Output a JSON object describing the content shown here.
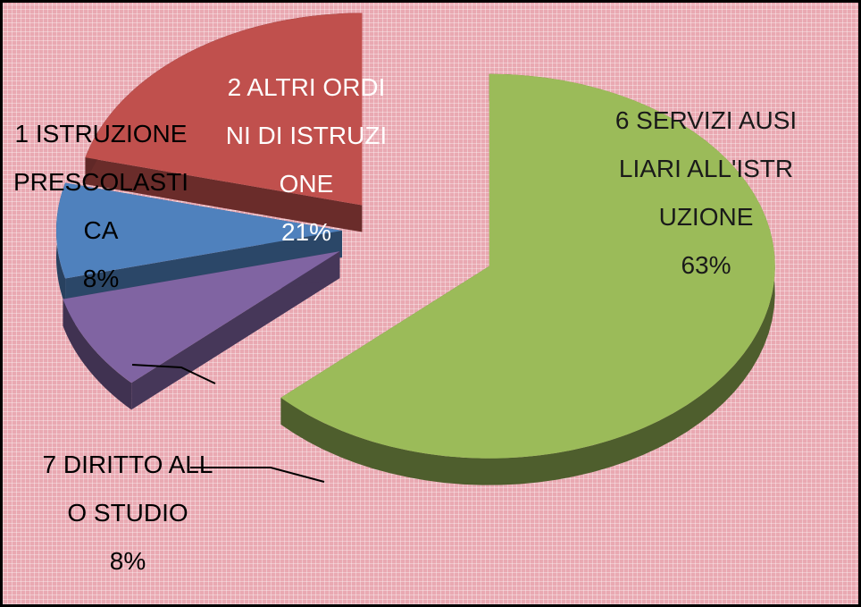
{
  "chart_data": {
    "type": "pie",
    "categories": [
      "1 ISTRUZIONE PRESCOLASTICA",
      "2 ALTRI ORDINI DI ISTRUZIONE",
      "6 SERVIZI AUSILIARI ALL'ISTRUZIONE",
      "7 DIRITTO ALLO STUDIO"
    ],
    "values": [
      8,
      21,
      63,
      8
    ],
    "value_labels": [
      "8%",
      "21%",
      "63%",
      "8%"
    ],
    "colors": [
      "#4f81bd",
      "#c0504d",
      "#9bbb59",
      "#8064a2"
    ],
    "three_d": true,
    "exploded": true
  }
}
